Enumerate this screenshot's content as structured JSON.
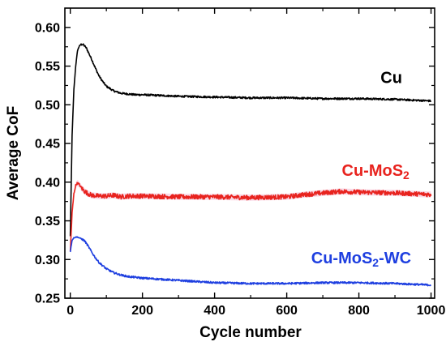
{
  "chart_data": {
    "type": "line",
    "title": "",
    "xlabel": "Cycle number",
    "ylabel": "Average CoF",
    "xlim": [
      -15,
      1010
    ],
    "ylim": [
      0.25,
      0.625
    ],
    "xticks": [
      0,
      200,
      400,
      600,
      800,
      1000
    ],
    "xtick_labels": [
      "0",
      "200",
      "400",
      "600",
      "800",
      "1000"
    ],
    "yticks": [
      0.25,
      0.3,
      0.35,
      0.4,
      0.45,
      0.5,
      0.55,
      0.6
    ],
    "ytick_labels": [
      "0.25",
      "0.30",
      "0.35",
      "0.40",
      "0.45",
      "0.50",
      "0.55",
      "0.60"
    ],
    "grid": false,
    "legend": "none",
    "series": [
      {
        "name": "Cu",
        "label_main": "Cu",
        "label_sub": "",
        "label_suffix": "",
        "color": "#000000",
        "noise": 0.0012,
        "x": [
          0,
          5,
          10,
          15,
          20,
          25,
          30,
          35,
          40,
          45,
          50,
          60,
          70,
          80,
          90,
          100,
          120,
          140,
          160,
          180,
          200,
          250,
          300,
          400,
          500,
          600,
          700,
          800,
          900,
          950,
          1000
        ],
        "y": [
          0.33,
          0.46,
          0.52,
          0.55,
          0.57,
          0.576,
          0.578,
          0.578,
          0.576,
          0.573,
          0.568,
          0.558,
          0.547,
          0.537,
          0.53,
          0.524,
          0.518,
          0.515,
          0.514,
          0.513,
          0.513,
          0.512,
          0.511,
          0.51,
          0.509,
          0.509,
          0.508,
          0.508,
          0.507,
          0.506,
          0.505
        ]
      },
      {
        "name": "Cu-MoS2",
        "label_main": "Cu-MoS",
        "label_sub": "2",
        "label_suffix": "",
        "color": "#e8231e",
        "band_color": "#f6c9dc",
        "noise": 0.003,
        "x": [
          0,
          5,
          10,
          15,
          20,
          25,
          30,
          40,
          50,
          60,
          80,
          100,
          120,
          140,
          160,
          200,
          300,
          400,
          500,
          600,
          650,
          700,
          750,
          800,
          900,
          1000
        ],
        "y": [
          0.31,
          0.36,
          0.385,
          0.396,
          0.399,
          0.397,
          0.393,
          0.388,
          0.385,
          0.383,
          0.382,
          0.382,
          0.383,
          0.381,
          0.382,
          0.382,
          0.381,
          0.381,
          0.38,
          0.381,
          0.384,
          0.386,
          0.388,
          0.387,
          0.386,
          0.384
        ]
      },
      {
        "name": "Cu-MoS2-WC",
        "label_main": "Cu-MoS",
        "label_sub": "2",
        "label_suffix": "-WC",
        "color": "#1e3fe0",
        "noise": 0.0012,
        "x": [
          0,
          5,
          10,
          15,
          20,
          30,
          40,
          50,
          60,
          70,
          80,
          100,
          120,
          140,
          160,
          200,
          300,
          400,
          500,
          600,
          700,
          800,
          900,
          1000
        ],
        "y": [
          0.31,
          0.325,
          0.328,
          0.329,
          0.329,
          0.327,
          0.324,
          0.317,
          0.309,
          0.302,
          0.296,
          0.288,
          0.283,
          0.28,
          0.278,
          0.276,
          0.273,
          0.27,
          0.269,
          0.269,
          0.27,
          0.27,
          0.269,
          0.267
        ]
      }
    ]
  }
}
